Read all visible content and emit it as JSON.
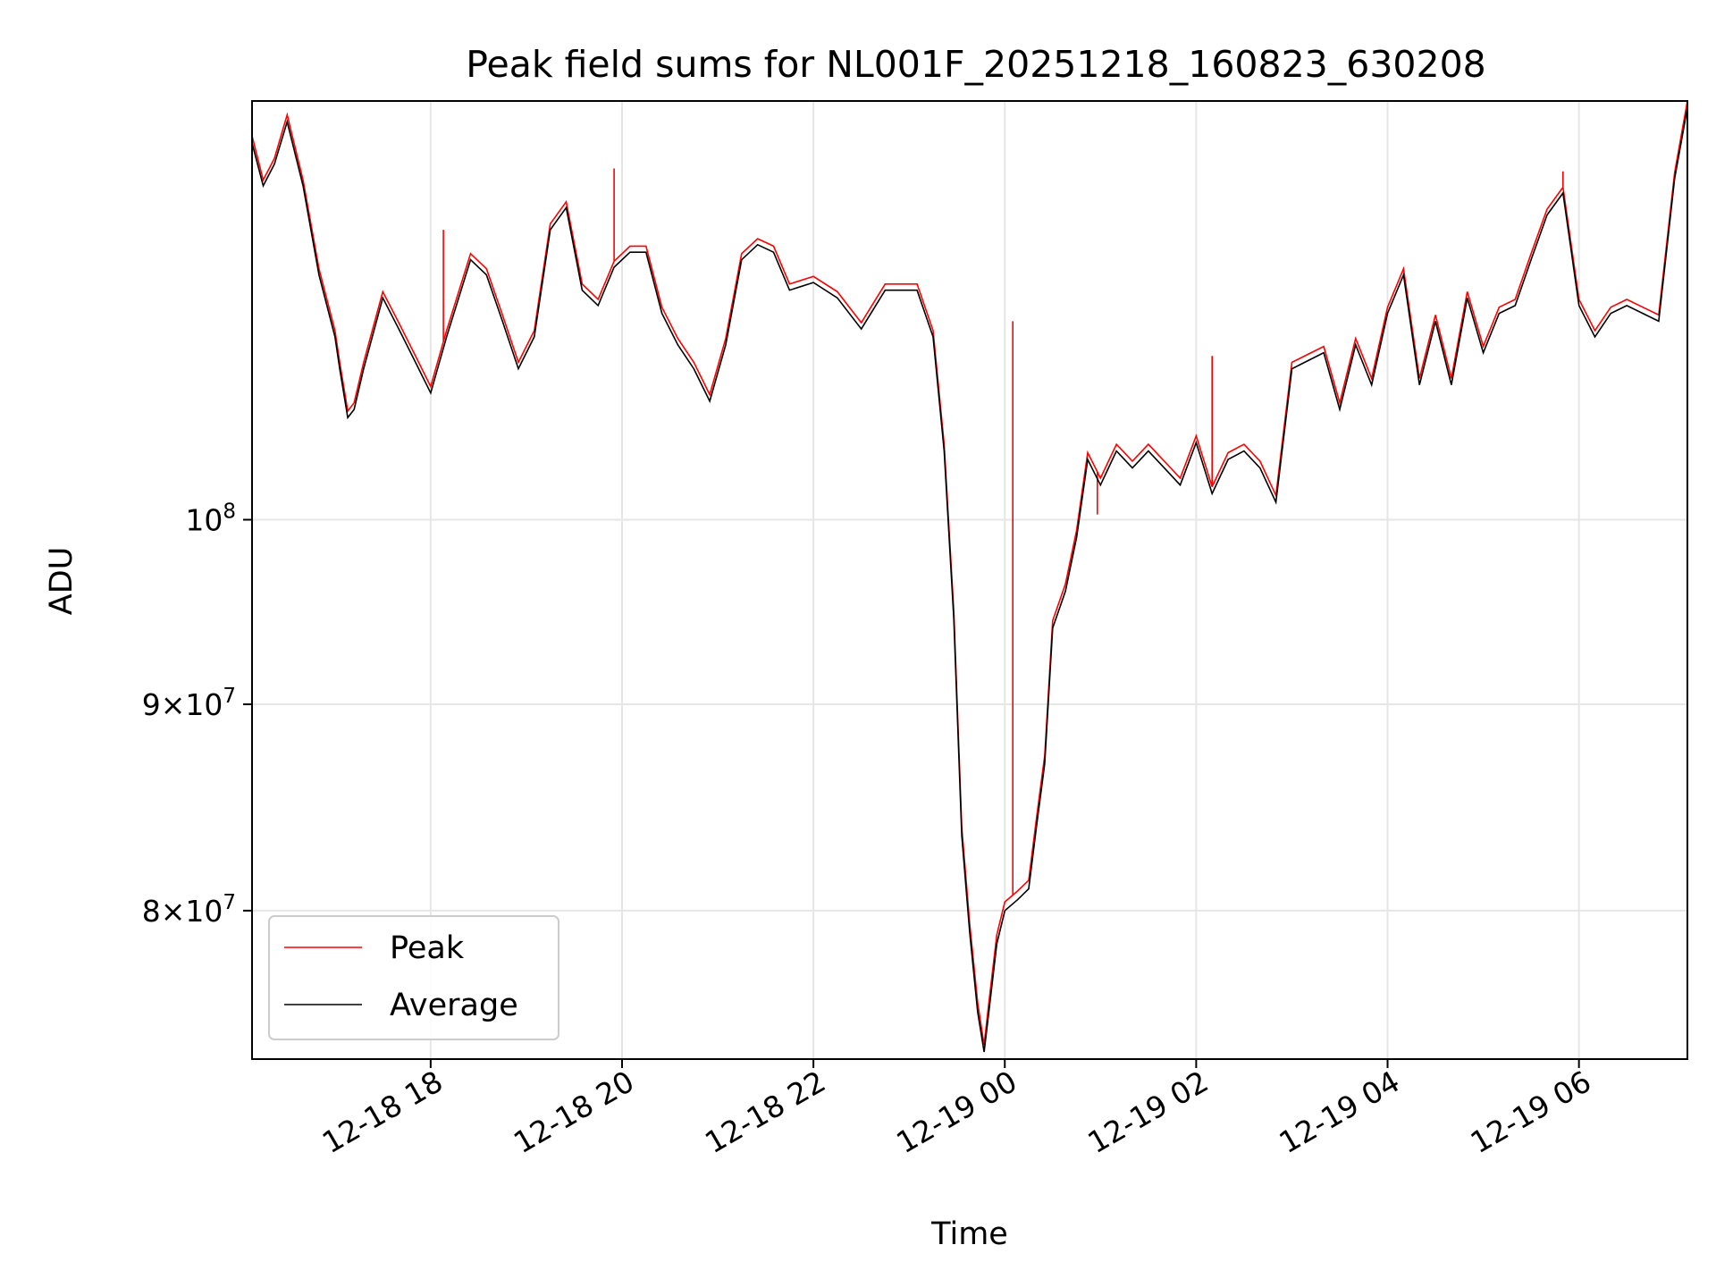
{
  "chart_data": {
    "type": "line",
    "title": "Peak field sums for NL001F_20251218_160823_630208",
    "xlabel": "Time",
    "ylabel": "ADU",
    "y_scale": "log",
    "xlim": [
      "2025-12-18 16:08",
      "2025-12-19 07:08"
    ],
    "ylim": [
      73500000,
      127000000
    ],
    "grid": true,
    "legend_placement": "lower-left",
    "x_ticks": [
      {
        "value": "2025-12-18 18:00",
        "label": "12-18 18"
      },
      {
        "value": "2025-12-18 20:00",
        "label": "12-18 20"
      },
      {
        "value": "2025-12-18 22:00",
        "label": "12-18 22"
      },
      {
        "value": "2025-12-19 00:00",
        "label": "12-19 00"
      },
      {
        "value": "2025-12-19 02:00",
        "label": "12-19 02"
      },
      {
        "value": "2025-12-19 04:00",
        "label": "12-19 04"
      },
      {
        "value": "2025-12-19 06:00",
        "label": "12-19 06"
      }
    ],
    "y_ticks": [
      {
        "value": 80000000,
        "base": "8",
        "exp": "7"
      },
      {
        "value": 90000000,
        "base": "9",
        "exp": "7"
      },
      {
        "value": 100000000,
        "base": "",
        "exp": "8"
      }
    ],
    "series": [
      {
        "name": "Peak",
        "color": "#ff0000"
      },
      {
        "name": "Average",
        "color": "#000000"
      }
    ],
    "x": [
      "2025-12-18 16:08",
      "2025-12-18 16:15",
      "2025-12-18 16:22",
      "2025-12-18 16:30",
      "2025-12-18 16:40",
      "2025-12-18 16:50",
      "2025-12-18 17:00",
      "2025-12-18 17:03",
      "2025-12-18 17:08",
      "2025-12-18 17:12",
      "2025-12-18 17:18",
      "2025-12-18 17:30",
      "2025-12-18 17:40",
      "2025-12-18 17:50",
      "2025-12-18 18:00",
      "2025-12-18 18:10",
      "2025-12-18 18:25",
      "2025-12-18 18:35",
      "2025-12-18 18:45",
      "2025-12-18 18:55",
      "2025-12-18 19:05",
      "2025-12-18 19:15",
      "2025-12-18 19:25",
      "2025-12-18 19:35",
      "2025-12-18 19:45",
      "2025-12-18 19:55",
      "2025-12-18 20:05",
      "2025-12-18 20:15",
      "2025-12-18 20:25",
      "2025-12-18 20:35",
      "2025-12-18 20:45",
      "2025-12-18 20:55",
      "2025-12-18 21:05",
      "2025-12-18 21:15",
      "2025-12-18 21:25",
      "2025-12-18 21:35",
      "2025-12-18 21:45",
      "2025-12-18 22:00",
      "2025-12-18 22:15",
      "2025-12-18 22:30",
      "2025-12-18 22:45",
      "2025-12-18 22:55",
      "2025-12-18 23:05",
      "2025-12-18 23:15",
      "2025-12-18 23:22",
      "2025-12-18 23:28",
      "2025-12-18 23:33",
      "2025-12-18 23:38",
      "2025-12-18 23:43",
      "2025-12-18 23:47",
      "2025-12-18 23:50",
      "2025-12-18 23:55",
      "2025-12-19 00:00",
      "2025-12-19 00:08",
      "2025-12-19 00:15",
      "2025-12-19 00:20",
      "2025-12-19 00:25",
      "2025-12-19 00:30",
      "2025-12-19 00:38",
      "2025-12-19 00:45",
      "2025-12-19 00:52",
      "2025-12-19 01:00",
      "2025-12-19 01:10",
      "2025-12-19 01:20",
      "2025-12-19 01:30",
      "2025-12-19 01:40",
      "2025-12-19 01:50",
      "2025-12-19 02:00",
      "2025-12-19 02:10",
      "2025-12-19 02:20",
      "2025-12-19 02:30",
      "2025-12-19 02:40",
      "2025-12-19 02:50",
      "2025-12-19 03:00",
      "2025-12-19 03:10",
      "2025-12-19 03:20",
      "2025-12-19 03:30",
      "2025-12-19 03:40",
      "2025-12-19 03:50",
      "2025-12-19 04:00",
      "2025-12-19 04:10",
      "2025-12-19 04:20",
      "2025-12-19 04:30",
      "2025-12-19 04:40",
      "2025-12-19 04:50",
      "2025-12-19 05:00",
      "2025-12-19 05:10",
      "2025-12-19 05:20",
      "2025-12-19 05:30",
      "2025-12-19 05:40",
      "2025-12-19 05:50",
      "2025-12-19 06:00",
      "2025-12-19 06:10",
      "2025-12-19 06:20",
      "2025-12-19 06:30",
      "2025-12-19 06:40",
      "2025-12-19 06:50",
      "2025-12-19 07:00",
      "2025-12-19 07:08"
    ],
    "average": [
      124000000,
      121000000,
      122500000,
      125500000,
      121000000,
      115000000,
      111000000,
      109000000,
      106000000,
      106500000,
      109000000,
      113500000,
      111500000,
      109500000,
      107500000,
      111000000,
      116000000,
      115000000,
      112000000,
      109000000,
      111000000,
      118000000,
      119500000,
      114000000,
      113000000,
      115500000,
      116500000,
      116500000,
      112500000,
      110500000,
      109000000,
      107000000,
      110500000,
      116000000,
      117000000,
      116500000,
      114000000,
      114500000,
      113500000,
      111500000,
      114000000,
      114000000,
      114000000,
      111000000,
      104000000,
      94500000,
      83500000,
      79000000,
      75500000,
      73800000,
      75500000,
      78500000,
      80000000,
      80500000,
      81000000,
      84000000,
      87000000,
      94000000,
      96000000,
      99000000,
      103500000,
      102000000,
      104000000,
      103000000,
      104000000,
      103000000,
      102000000,
      104500000,
      101500000,
      103500000,
      104000000,
      103000000,
      101000000,
      109000000,
      109500000,
      110000000,
      106500000,
      110500000,
      108000000,
      112500000,
      115000000,
      108000000,
      112000000,
      108000000,
      113500000,
      110000000,
      112500000,
      113000000,
      116000000,
      119000000,
      120500000,
      113000000,
      111000000,
      112500000,
      113000000,
      112500000,
      112000000,
      121500000,
      126500000
    ],
    "peak": [
      124500000,
      121400000,
      122900000,
      126000000,
      121400000,
      115400000,
      111400000,
      109400000,
      106400000,
      106900000,
      109400000,
      113900000,
      111900000,
      109900000,
      107900000,
      111400000,
      116400000,
      115400000,
      112400000,
      109400000,
      111400000,
      118400000,
      119900000,
      114400000,
      113400000,
      115900000,
      116900000,
      116900000,
      112900000,
      110900000,
      109400000,
      107400000,
      110900000,
      116400000,
      117400000,
      116900000,
      114400000,
      114900000,
      113900000,
      111900000,
      114400000,
      114400000,
      114400000,
      111400000,
      104400000,
      94900000,
      83900000,
      79400000,
      75900000,
      74100000,
      75900000,
      78900000,
      80400000,
      80900000,
      81400000,
      84400000,
      87400000,
      94400000,
      96400000,
      99400000,
      103900000,
      102400000,
      104400000,
      103400000,
      104400000,
      103400000,
      102400000,
      104900000,
      101900000,
      103900000,
      104400000,
      103400000,
      101400000,
      109400000,
      109900000,
      110400000,
      106900000,
      110900000,
      108400000,
      112900000,
      115400000,
      108400000,
      112400000,
      108400000,
      113900000,
      110400000,
      112900000,
      113400000,
      116400000,
      119400000,
      120900000,
      113400000,
      111400000,
      112900000,
      113400000,
      112900000,
      112400000,
      121900000,
      127000000
    ],
    "peak_spikes": [
      {
        "x": "2025-12-18 19:55",
        "value": 122200000
      },
      {
        "x": "2025-12-18 18:08",
        "value": 118000000
      },
      {
        "x": "2025-12-19 00:05",
        "value": 112000000
      },
      {
        "x": "2025-12-19 00:58",
        "value": 100300000
      },
      {
        "x": "2025-12-19 02:10",
        "value": 109800000
      },
      {
        "x": "2025-12-19 05:50",
        "value": 122000000
      }
    ]
  }
}
